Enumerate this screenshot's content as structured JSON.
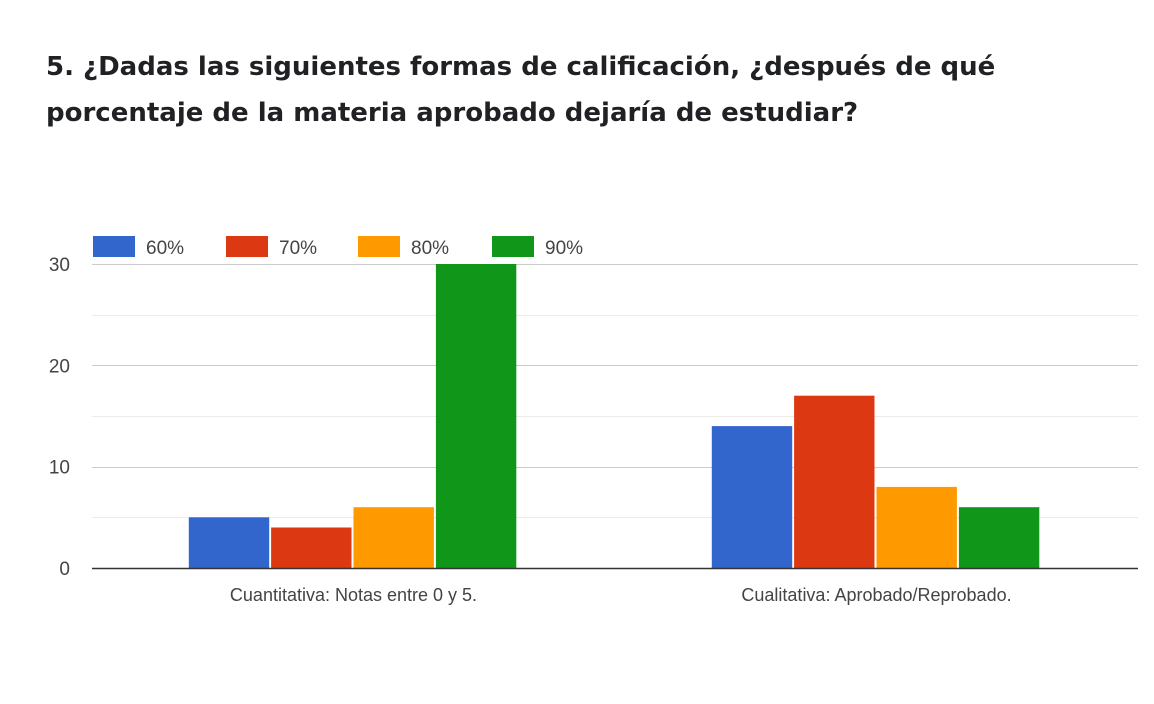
{
  "question": {
    "title": "5. ¿Dadas las siguientes formas de calificación, ¿después de qué porcentaje de la materia aprobado dejaría de estudiar?"
  },
  "chart_data": {
    "type": "bar",
    "title": "5. ¿Dadas las siguientes formas de calificación, ¿después de qué porcentaje de la materia aprobado dejaría de estudiar?",
    "xlabel": "",
    "ylabel": "",
    "categories": [
      "Cuantitativa: Notas entre 0 y 5.",
      "Cualitativa: Aprobado/Reprobado."
    ],
    "series": [
      {
        "name": "60%",
        "color": "#3366cc",
        "values": [
          5,
          14
        ]
      },
      {
        "name": "70%",
        "color": "#dc3912",
        "values": [
          4,
          17
        ]
      },
      {
        "name": "80%",
        "color": "#ff9900",
        "values": [
          6,
          8
        ]
      },
      {
        "name": "90%",
        "color": "#109618",
        "values": [
          30,
          6
        ]
      }
    ],
    "ylim": [
      0,
      30
    ],
    "yticks": [
      0,
      10,
      20,
      30
    ],
    "grid": true,
    "legend_position": "top-left"
  }
}
